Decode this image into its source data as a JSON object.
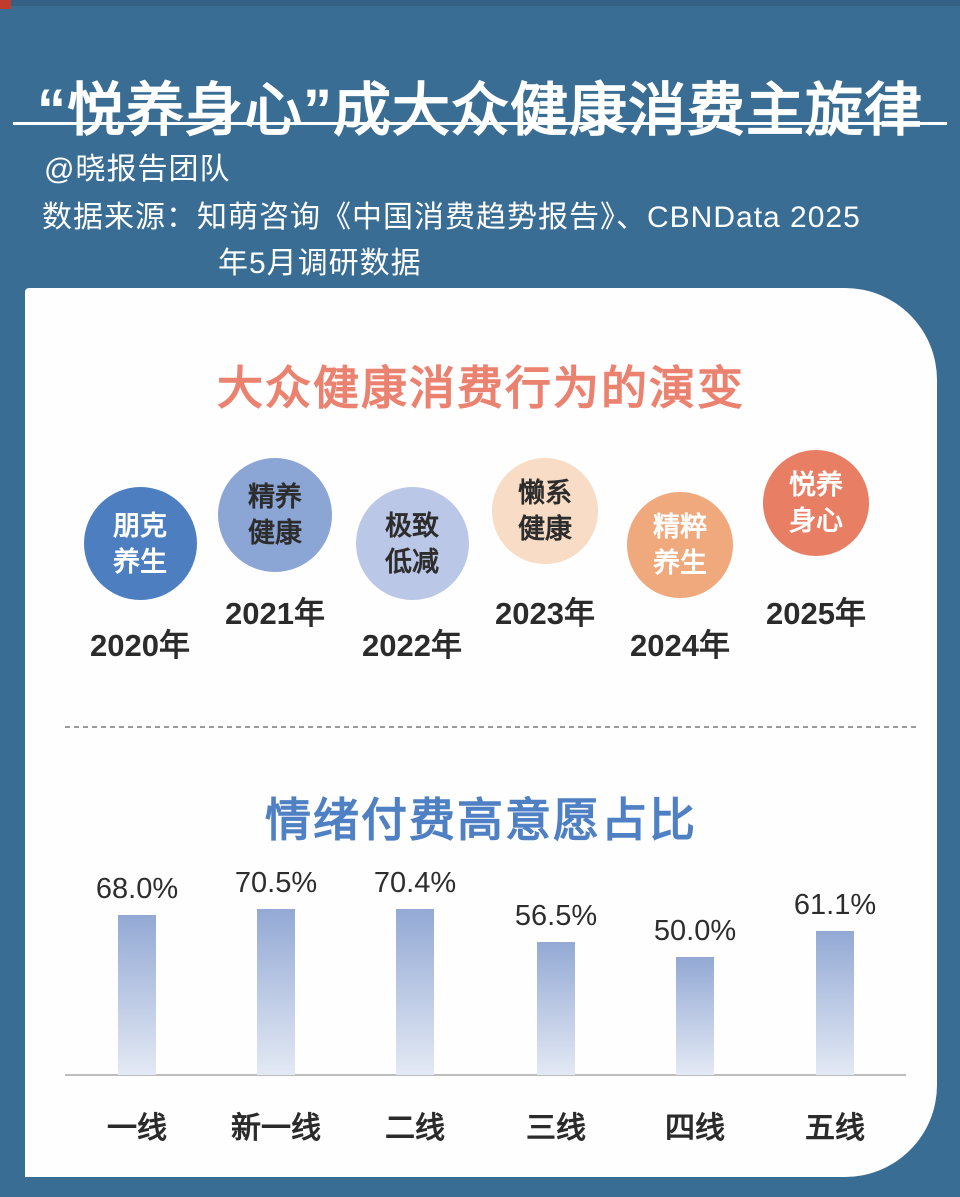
{
  "page": {
    "title": "“悦养身心”成大众健康消费主旋律",
    "author": "@晓报告团队",
    "source_line1": "数据来源：知萌咨询《中国消费趋势报告》、CBNData 2025",
    "source_line2": "年5月调研数据",
    "background_color": "#3a6d94",
    "card_color": "#fefefe"
  },
  "evolution": {
    "title": "大众健康消费行为的演变",
    "title_color": "#eb8270",
    "items": [
      {
        "label_lines": [
          "朋克",
          "养生"
        ],
        "year": "2020年",
        "circle_color": "#4d7fc0",
        "text_color": "#ffffff"
      },
      {
        "label_lines": [
          "精养",
          "健康"
        ],
        "year": "2021年",
        "circle_color": "#8ba5d5",
        "text_color": "#2d2d2d"
      },
      {
        "label_lines": [
          "极致",
          "低减"
        ],
        "year": "2022年",
        "circle_color": "#bac7e6",
        "text_color": "#2d2d2d"
      },
      {
        "label_lines": [
          "懒系",
          "健康"
        ],
        "year": "2023年",
        "circle_color": "#f8dcc5",
        "text_color": "#2d2d2d"
      },
      {
        "label_lines": [
          "精粹",
          "养生"
        ],
        "year": "2024年",
        "circle_color": "#f0a97d",
        "text_color": "#ffffff"
      },
      {
        "label_lines": [
          "悦养",
          "身心"
        ],
        "year": "2025年",
        "circle_color": "#e87e64",
        "text_color": "#ffffff"
      }
    ]
  },
  "chart_data": {
    "type": "bar",
    "title": "情绪付费高意愿占比",
    "title_color": "#4e80c3",
    "categories": [
      "一线",
      "新一线",
      "二线",
      "三线",
      "四线",
      "五线"
    ],
    "values": [
      68.0,
      70.5,
      70.4,
      56.5,
      50.0,
      61.1
    ],
    "value_labels": [
      "68.0%",
      "70.5%",
      "70.4%",
      "56.5%",
      "50.0%",
      "61.1%"
    ],
    "ylabel": "",
    "xlabel": "",
    "ylim": [
      0,
      75
    ],
    "grid": false,
    "legend": false,
    "bar_gradient_top": "#93a9d4",
    "bar_gradient_bottom": "#e3e9f4"
  }
}
